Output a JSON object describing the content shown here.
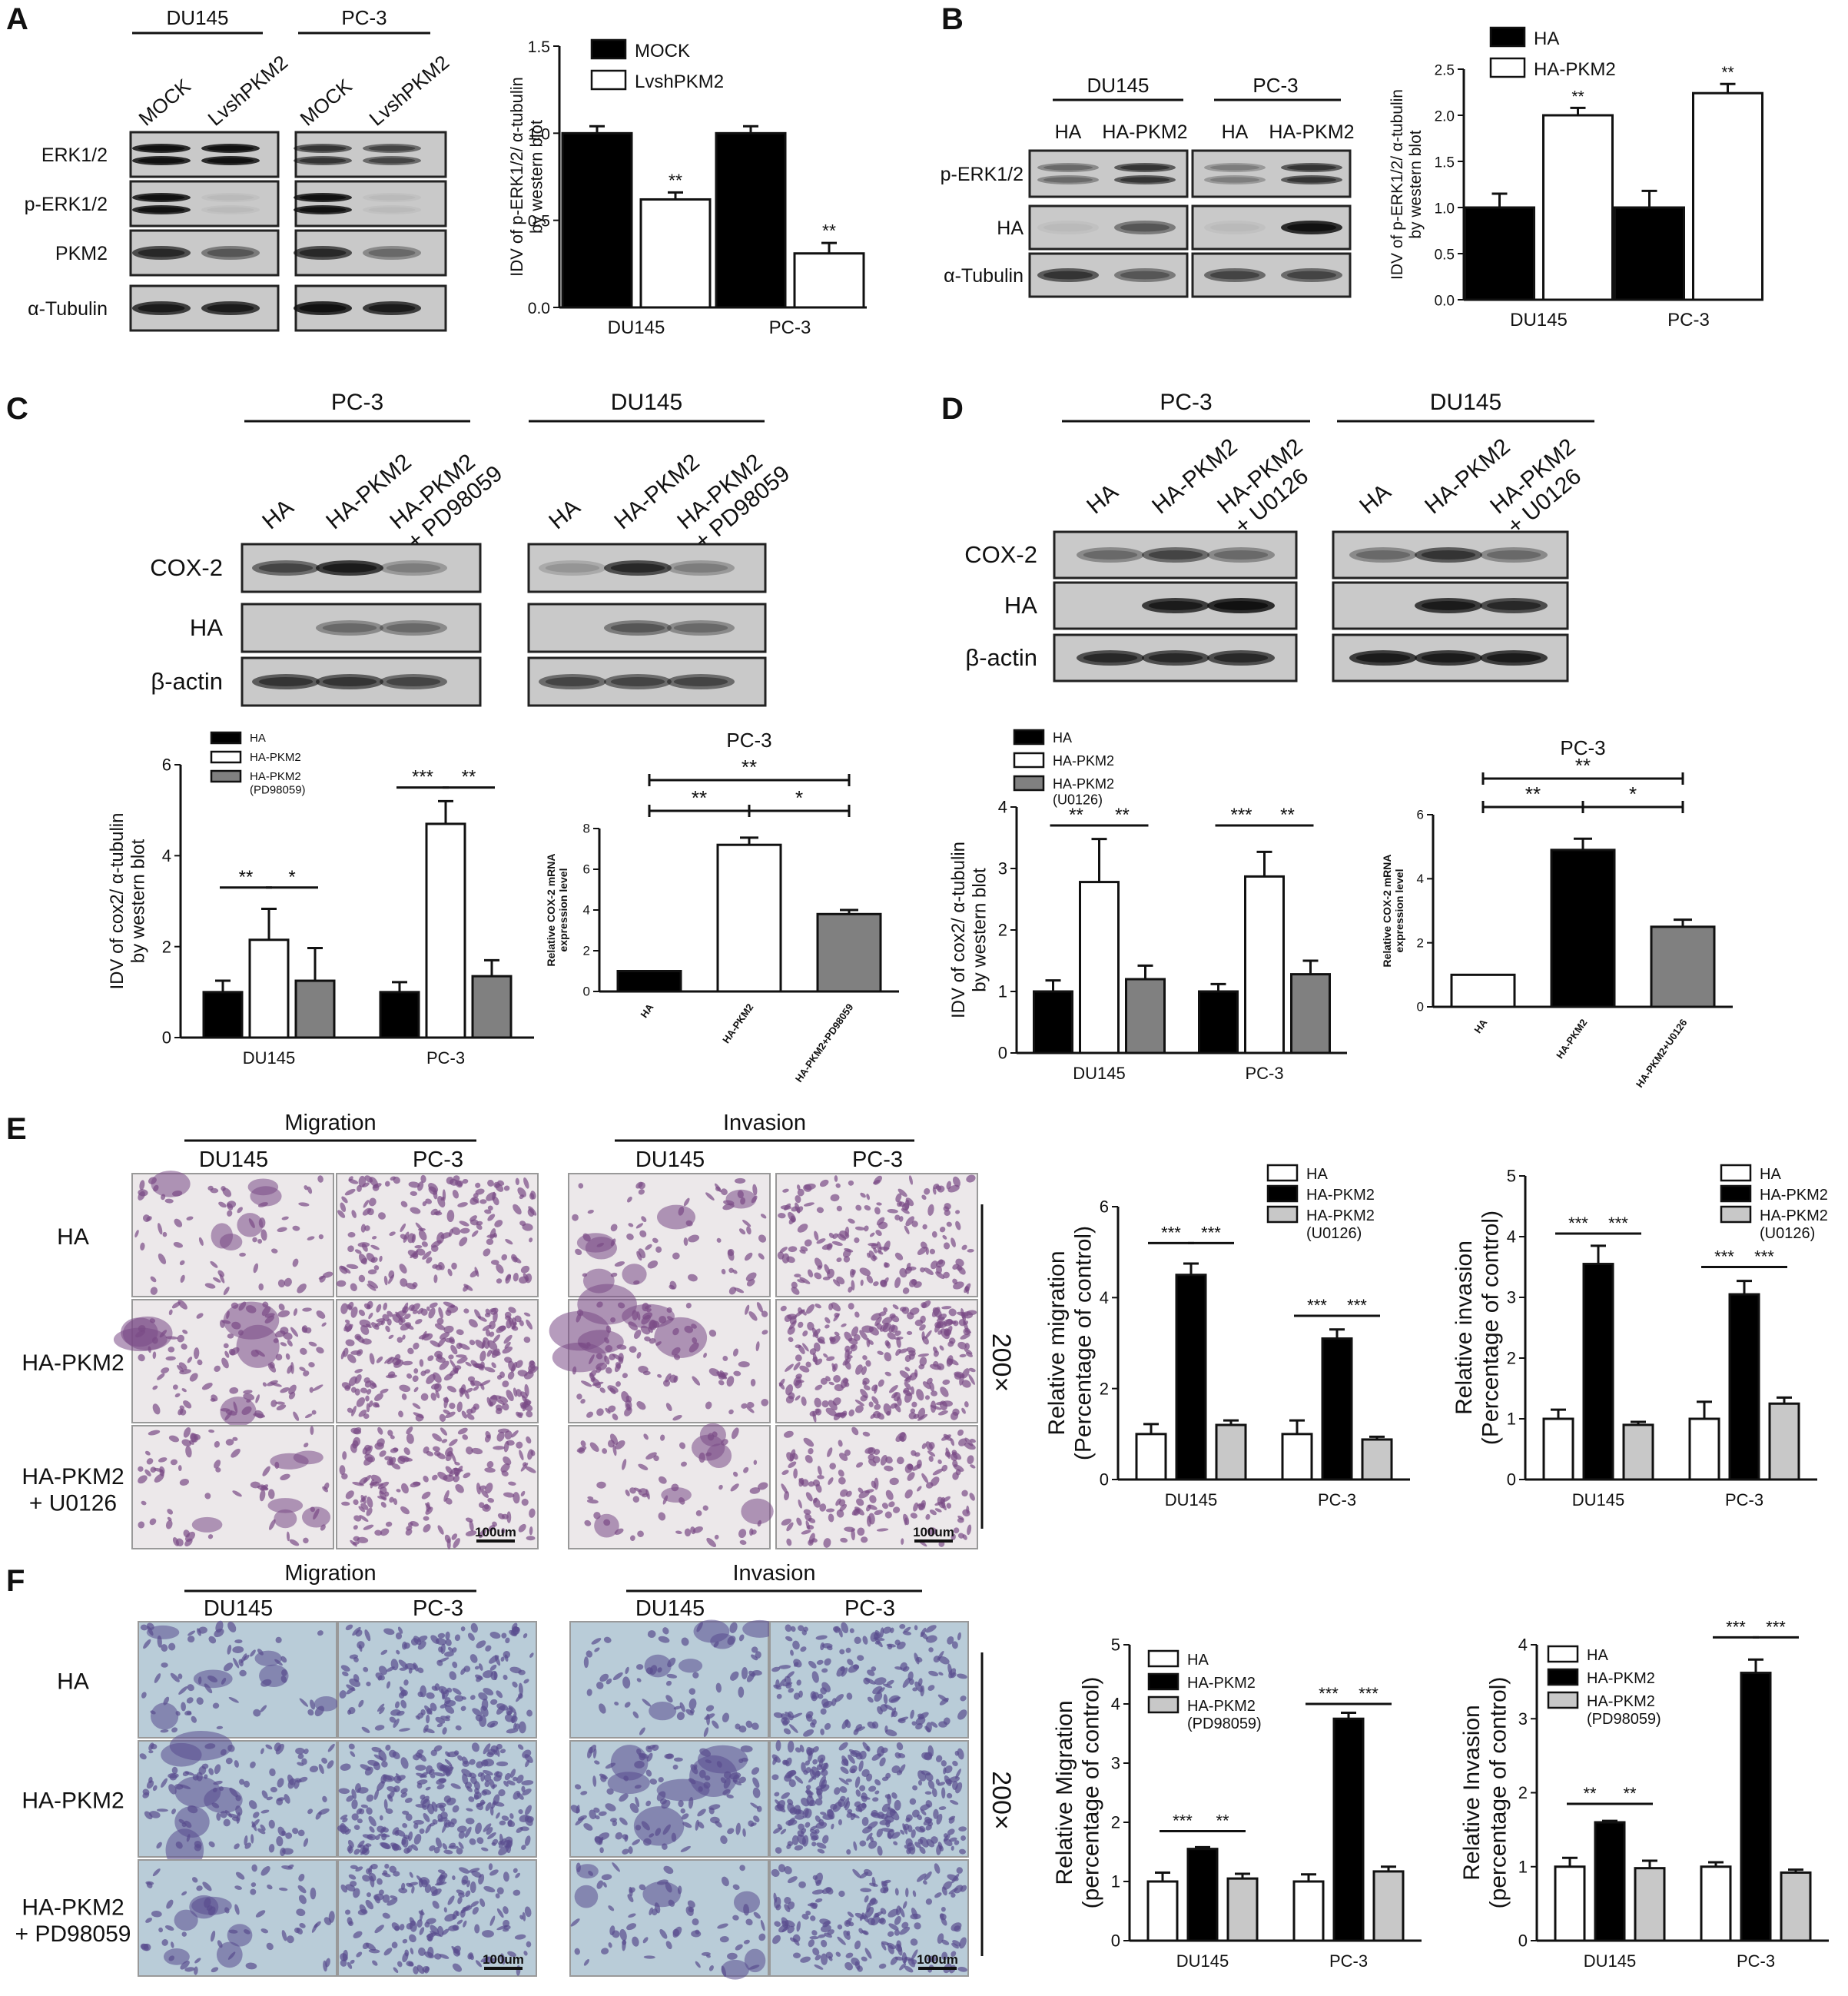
{
  "figure": {
    "panels": {
      "A": {
        "letter": "A",
        "blot": {
          "groups": [
            "DU145",
            "PC-3"
          ],
          "lanes": [
            "MOCK",
            "LvshPKM2",
            "MOCK",
            "LvshPKM2"
          ],
          "rows": [
            "ERK1/2",
            "p-ERK1/2",
            "PKM2",
            "α-Tubulin"
          ]
        }
      },
      "B": {
        "letter": "B",
        "blot": {
          "groups": [
            "DU145",
            "PC-3"
          ],
          "lanes": [
            "HA",
            "HA-PKM2",
            "HA",
            "HA-PKM2"
          ],
          "rows": [
            "p-ERK1/2",
            "HA",
            "α-Tubulin"
          ]
        }
      },
      "C": {
        "letter": "C",
        "blot": {
          "groups": [
            "PC-3",
            "DU145"
          ],
          "lanes": [
            "HA",
            "HA-PKM2",
            "HA-PKM2\n+ PD98059",
            "HA",
            "HA-PKM2",
            "HA-PKM2\n+ PD98059"
          ],
          "rows": [
            "COX-2",
            "HA",
            "β-actin"
          ]
        }
      },
      "D": {
        "letter": "D",
        "blot": {
          "groups": [
            "PC-3",
            "DU145"
          ],
          "lanes": [
            "HA",
            "HA-PKM2",
            "HA-PKM2\n+ U0126",
            "HA",
            "HA-PKM2",
            "HA-PKM2\n+ U0126"
          ],
          "rows": [
            "COX-2",
            "HA",
            "β-actin"
          ]
        }
      },
      "E": {
        "letter": "E",
        "assays": [
          "Migration",
          "Invasion"
        ],
        "cells": [
          "DU145",
          "PC-3"
        ],
        "rows": [
          "HA",
          "HA-PKM2",
          "HA-PKM2\n+ U0126"
        ],
        "magnification": "200×",
        "scale_bar": "100um"
      },
      "F": {
        "letter": "F",
        "assays": [
          "Migration",
          "Invasion"
        ],
        "cells": [
          "DU145",
          "PC-3"
        ],
        "rows": [
          "HA",
          "HA-PKM2",
          "HA-PKM2\n+ PD98059"
        ],
        "magnification": "200×",
        "scale_bar": "100um"
      }
    }
  },
  "chart_data": [
    {
      "id": "A_bar",
      "type": "bar",
      "categories": [
        "DU145",
        "PC-3"
      ],
      "series": [
        {
          "name": "MOCK",
          "values": [
            1.0,
            1.0
          ],
          "errors": [
            0.04,
            0.04
          ],
          "color": "#000000"
        },
        {
          "name": "LvshPKM2",
          "values": [
            0.62,
            0.31
          ],
          "errors": [
            0.04,
            0.06
          ],
          "color": "#ffffff"
        }
      ],
      "ylabel": "IDV of p-ERK1/2/ α-tubulin\nby western blot",
      "ylim": [
        0,
        1.5
      ],
      "yticks": [
        "0.0",
        "0.5",
        "1.0",
        "1.5"
      ],
      "significance": [
        {
          "bar": [
            0,
            1
          ],
          "label": "**"
        },
        {
          "bar": [
            1,
            1
          ],
          "label": "**"
        }
      ],
      "legend": "top-right"
    },
    {
      "id": "B_bar",
      "type": "bar",
      "categories": [
        "DU145",
        "PC-3"
      ],
      "series": [
        {
          "name": "HA",
          "values": [
            1.0,
            1.0
          ],
          "errors": [
            0.15,
            0.18
          ],
          "color": "#000000"
        },
        {
          "name": "HA-PKM2",
          "values": [
            2.0,
            2.24
          ],
          "errors": [
            0.08,
            0.1
          ],
          "color": "#ffffff"
        }
      ],
      "ylabel": "IDV of p-ERK1/2/ α-tubulin\nby western blot",
      "ylim": [
        0,
        2.5
      ],
      "yticks": [
        "0.0",
        "0.5",
        "1.0",
        "1.5",
        "2.0",
        "2.5"
      ],
      "significance": [
        {
          "bar": [
            0,
            1
          ],
          "label": "**"
        },
        {
          "bar": [
            1,
            1
          ],
          "label": "**"
        }
      ],
      "legend": "top-left"
    },
    {
      "id": "C_bar",
      "type": "bar",
      "categories": [
        "DU145",
        "PC-3"
      ],
      "series": [
        {
          "name": "HA",
          "values": [
            1.0,
            1.0
          ],
          "errors": [
            0.25,
            0.22
          ],
          "color": "#000000"
        },
        {
          "name": "HA-PKM2",
          "values": [
            2.15,
            4.7
          ],
          "errors": [
            0.68,
            0.5
          ],
          "color": "#ffffff"
        },
        {
          "name": "HA-PKM2\n(PD98059)",
          "values": [
            1.25,
            1.35
          ],
          "errors": [
            0.72,
            0.35
          ],
          "color": "#808080"
        }
      ],
      "ylabel": "IDV of cox2/ α-tubulin\nby western blot",
      "ylim": [
        0,
        6
      ],
      "yticks": [
        "0",
        "2",
        "4",
        "6"
      ],
      "brackets": [
        {
          "cat": 0,
          "from": 0,
          "to": 1,
          "label": "**",
          "y": 3.3
        },
        {
          "cat": 0,
          "from": 1,
          "to": 2,
          "label": "*",
          "y": 3.3
        },
        {
          "cat": 1,
          "from": 0,
          "to": 1,
          "label": "***",
          "y": 5.5
        },
        {
          "cat": 1,
          "from": 1,
          "to": 2,
          "label": "**",
          "y": 5.5
        }
      ],
      "legend": "top-left"
    },
    {
      "id": "C_mrna",
      "type": "bar",
      "title": "PC-3",
      "categories": [
        "HA",
        "HA-PKM2",
        "HA-PKM2+PD98059"
      ],
      "values": [
        1.0,
        7.2,
        3.8
      ],
      "errors": [
        0,
        0.35,
        0.2
      ],
      "colors": [
        "#000000",
        "#ffffff",
        "#808080"
      ],
      "ylabel": "Relative COX-2 mRNA\nexpression level",
      "ylim": [
        0,
        8
      ],
      "yticks": [
        "0",
        "2",
        "4",
        "6",
        "8"
      ],
      "brackets": [
        {
          "from": 0,
          "to": 2,
          "label": "**",
          "level": 2
        },
        {
          "from": 0,
          "to": 1,
          "label": "**",
          "level": 1
        },
        {
          "from": 1,
          "to": 2,
          "label": "*",
          "level": 1
        }
      ]
    },
    {
      "id": "D_bar",
      "type": "bar",
      "categories": [
        "DU145",
        "PC-3"
      ],
      "series": [
        {
          "name": "HA",
          "values": [
            1.0,
            1.0
          ],
          "errors": [
            0.18,
            0.12
          ],
          "color": "#000000"
        },
        {
          "name": "HA-PKM2",
          "values": [
            2.78,
            2.87
          ],
          "errors": [
            0.7,
            0.4
          ],
          "color": "#ffffff"
        },
        {
          "name": "HA-PKM2\n(U0126)",
          "values": [
            1.2,
            1.28
          ],
          "errors": [
            0.22,
            0.22
          ],
          "color": "#808080"
        }
      ],
      "ylabel": "IDV of cox2/ α-tubulin\nby western blot",
      "ylim": [
        0,
        4
      ],
      "yticks": [
        "0",
        "1",
        "2",
        "3",
        "4"
      ],
      "brackets": [
        {
          "cat": 0,
          "from": 0,
          "to": 1,
          "label": "**",
          "y": 3.7
        },
        {
          "cat": 0,
          "from": 1,
          "to": 2,
          "label": "**",
          "y": 3.7
        },
        {
          "cat": 1,
          "from": 0,
          "to": 1,
          "label": "***",
          "y": 3.7
        },
        {
          "cat": 1,
          "from": 1,
          "to": 2,
          "label": "**",
          "y": 3.7
        }
      ],
      "legend": "top-left"
    },
    {
      "id": "D_mrna",
      "type": "bar",
      "title": "PC-3",
      "categories": [
        "HA",
        "HA-PKM2",
        "HA-PKM2+U0126"
      ],
      "values": [
        1.0,
        4.9,
        2.5
      ],
      "errors": [
        0,
        0.35,
        0.22
      ],
      "colors": [
        "#ffffff",
        "#000000",
        "#808080"
      ],
      "ylabel": "Relative COX-2 mRNA\nexpression level",
      "ylim": [
        0,
        6
      ],
      "yticks": [
        "0",
        "2",
        "4",
        "6"
      ],
      "brackets": [
        {
          "from": 0,
          "to": 2,
          "label": "**",
          "level": 2
        },
        {
          "from": 0,
          "to": 1,
          "label": "**",
          "level": 1
        },
        {
          "from": 1,
          "to": 2,
          "label": "*",
          "level": 1
        }
      ]
    },
    {
      "id": "E_migration",
      "type": "bar",
      "categories": [
        "DU145",
        "PC-3"
      ],
      "series": [
        {
          "name": "HA",
          "values": [
            1.0,
            1.0
          ],
          "errors": [
            0.22,
            0.3
          ],
          "color": "#ffffff"
        },
        {
          "name": "HA-PKM2",
          "values": [
            4.5,
            3.1
          ],
          "errors": [
            0.25,
            0.2
          ],
          "color": "#000000"
        },
        {
          "name": "HA-PKM2\n(U0126)",
          "values": [
            1.2,
            0.88
          ],
          "errors": [
            0.1,
            0.06
          ],
          "color": "#c8c8c8"
        }
      ],
      "ylabel": "Relative migration\n(Percentage of control)",
      "ylim": [
        0,
        6
      ],
      "yticks": [
        "0",
        "2",
        "4",
        "6"
      ],
      "brackets": [
        {
          "cat": 0,
          "from": 0,
          "to": 1,
          "label": "***",
          "y": 5.2
        },
        {
          "cat": 0,
          "from": 1,
          "to": 2,
          "label": "***",
          "y": 5.2
        },
        {
          "cat": 1,
          "from": 0,
          "to": 1,
          "label": "***",
          "y": 3.6
        },
        {
          "cat": 1,
          "from": 1,
          "to": 2,
          "label": "***",
          "y": 3.6
        }
      ],
      "legend": "top-right"
    },
    {
      "id": "E_invasion",
      "type": "bar",
      "categories": [
        "DU145",
        "PC-3"
      ],
      "series": [
        {
          "name": "HA",
          "values": [
            1.0,
            1.0
          ],
          "errors": [
            0.15,
            0.28
          ],
          "color": "#ffffff"
        },
        {
          "name": "HA-PKM2",
          "values": [
            3.55,
            3.05
          ],
          "errors": [
            0.3,
            0.22
          ],
          "color": "#000000"
        },
        {
          "name": "HA-PKM2\n(U0126)",
          "values": [
            0.9,
            1.25
          ],
          "errors": [
            0.05,
            0.1
          ],
          "color": "#c8c8c8"
        }
      ],
      "ylabel": "Relative invasion\n(Percentage of control)",
      "ylim": [
        0,
        5
      ],
      "yticks": [
        "0",
        "1",
        "2",
        "3",
        "4",
        "5"
      ],
      "brackets": [
        {
          "cat": 0,
          "from": 0,
          "to": 1,
          "label": "***",
          "y": 4.05
        },
        {
          "cat": 0,
          "from": 1,
          "to": 2,
          "label": "***",
          "y": 4.05
        },
        {
          "cat": 1,
          "from": 0,
          "to": 1,
          "label": "***",
          "y": 3.5
        },
        {
          "cat": 1,
          "from": 1,
          "to": 2,
          "label": "***",
          "y": 3.5
        }
      ],
      "legend": "top-right"
    },
    {
      "id": "F_migration",
      "type": "bar",
      "categories": [
        "DU145",
        "PC-3"
      ],
      "series": [
        {
          "name": "HA",
          "values": [
            1.0,
            1.0
          ],
          "errors": [
            0.15,
            0.12
          ],
          "color": "#ffffff"
        },
        {
          "name": "HA-PKM2",
          "values": [
            1.55,
            3.75
          ],
          "errors": [
            0.03,
            0.1
          ],
          "color": "#000000"
        },
        {
          "name": "HA-PKM2\n(PD98059)",
          "values": [
            1.05,
            1.17
          ],
          "errors": [
            0.08,
            0.08
          ],
          "color": "#c8c8c8"
        }
      ],
      "ylabel": "Relative Migration\n(percentage of control)",
      "ylim": [
        0,
        5
      ],
      "yticks": [
        "0",
        "1",
        "2",
        "3",
        "4",
        "5"
      ],
      "brackets": [
        {
          "cat": 0,
          "from": 0,
          "to": 1,
          "label": "***",
          "y": 1.85
        },
        {
          "cat": 0,
          "from": 1,
          "to": 2,
          "label": "**",
          "y": 1.85
        },
        {
          "cat": 1,
          "from": 0,
          "to": 1,
          "label": "***",
          "y": 4.0
        },
        {
          "cat": 1,
          "from": 1,
          "to": 2,
          "label": "***",
          "y": 4.0
        }
      ],
      "legend": "top-left"
    },
    {
      "id": "F_invasion",
      "type": "bar",
      "categories": [
        "DU145",
        "PC-3"
      ],
      "series": [
        {
          "name": "HA",
          "values": [
            1.0,
            1.0
          ],
          "errors": [
            0.12,
            0.06
          ],
          "color": "#ffffff"
        },
        {
          "name": "HA-PKM2",
          "values": [
            1.6,
            3.62
          ],
          "errors": [
            0.02,
            0.18
          ],
          "color": "#000000"
        },
        {
          "name": "HA-PKM2\n(PD98059)",
          "values": [
            0.98,
            0.92
          ],
          "errors": [
            0.1,
            0.04
          ],
          "color": "#c8c8c8"
        }
      ],
      "ylabel": "Relative Invasion\n(percentage of control)",
      "ylim": [
        0,
        4
      ],
      "yticks": [
        "0",
        "1",
        "2",
        "3",
        "4"
      ],
      "brackets": [
        {
          "cat": 0,
          "from": 0,
          "to": 1,
          "label": "**",
          "y": 1.85
        },
        {
          "cat": 0,
          "from": 1,
          "to": 2,
          "label": "**",
          "y": 1.85
        },
        {
          "cat": 1,
          "from": 0,
          "to": 1,
          "label": "***",
          "y": 4.1
        },
        {
          "cat": 1,
          "from": 1,
          "to": 2,
          "label": "***",
          "y": 4.1
        }
      ],
      "legend": "top-left"
    }
  ]
}
